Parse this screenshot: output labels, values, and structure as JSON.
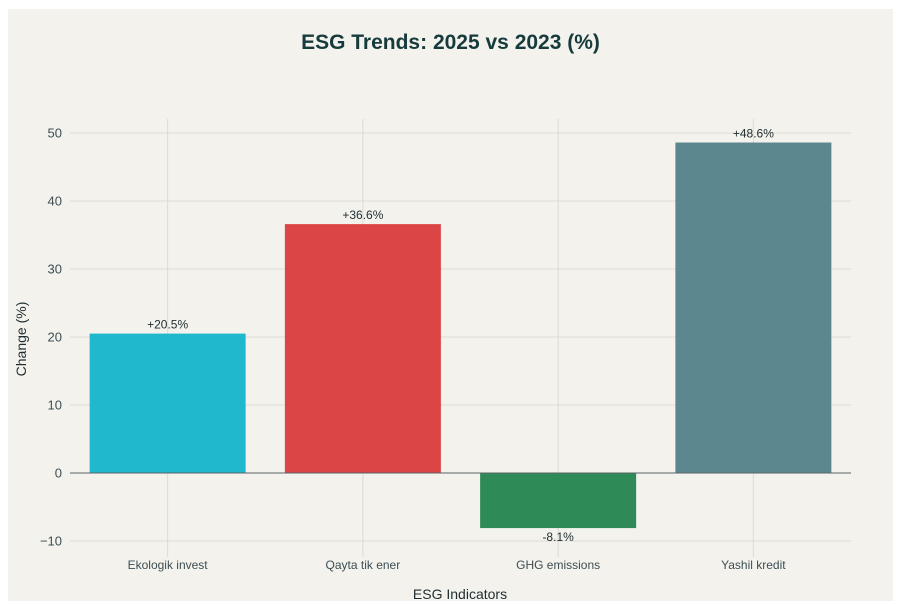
{
  "chart_data": {
    "type": "bar",
    "title": "ESG Trends: 2025 vs 2023 (%)",
    "xlabel": "ESG Indicators",
    "ylabel": "Change (%)",
    "categories": [
      "Ekologik invest",
      "Qayta tik ener",
      "GHG emissions",
      "Yashil kredit"
    ],
    "values": [
      20.5,
      36.6,
      -8.1,
      48.6
    ],
    "data_labels": [
      "+20.5%",
      "+36.6%",
      "-8.1%",
      "+48.6%"
    ],
    "colors": [
      "#1fb8cd",
      "#db4545",
      "#2e8b57",
      "#5d878f"
    ],
    "ylim": [
      -12,
      52
    ],
    "yticks": [
      -10,
      0,
      10,
      20,
      30,
      40,
      50
    ],
    "ytick_labels": [
      "−10",
      "0",
      "10",
      "20",
      "30",
      "40",
      "50"
    ],
    "grid": true,
    "legend": "none"
  }
}
